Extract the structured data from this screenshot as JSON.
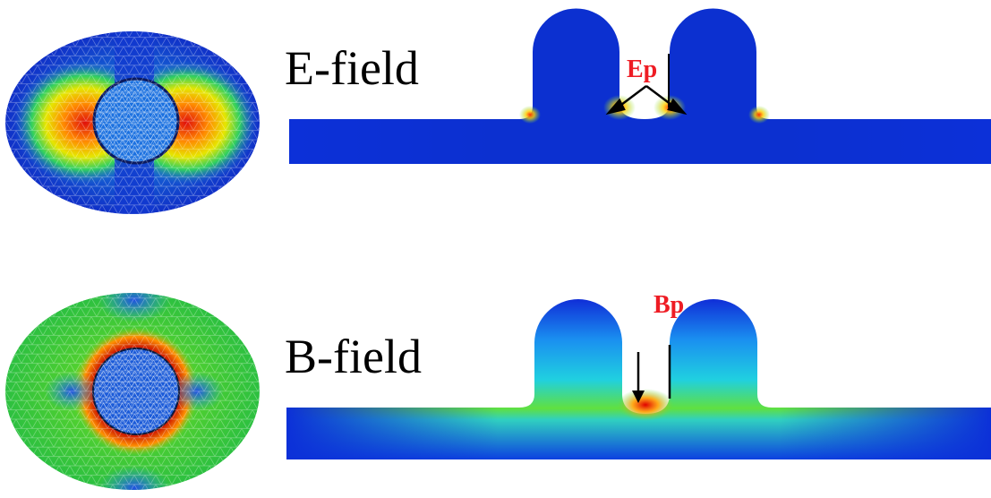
{
  "top": {
    "label": "E-field",
    "annotation": "Ep"
  },
  "bottom": {
    "label": "B-field",
    "annotation": "Bp"
  }
}
